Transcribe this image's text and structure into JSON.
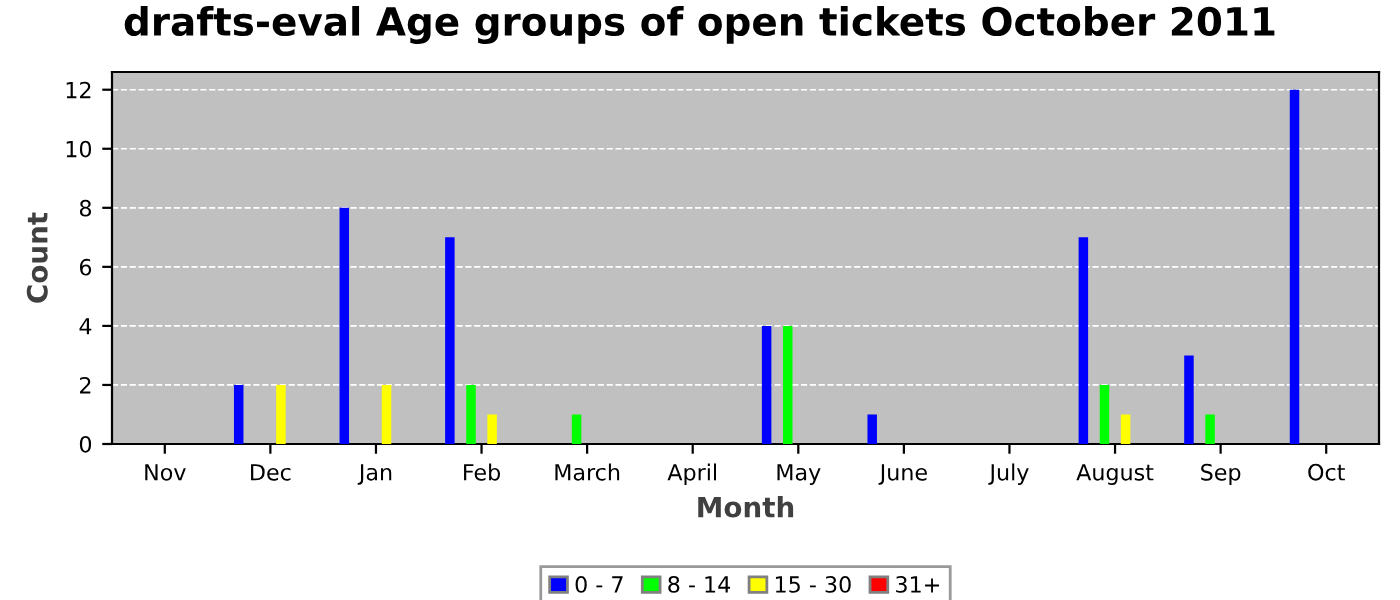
{
  "chart_data": {
    "type": "bar",
    "title": "drafts-eval Age groups of open tickets October 2011",
    "xlabel": "Month",
    "ylabel": "Count",
    "categories": [
      "Nov",
      "Dec",
      "Jan",
      "Feb",
      "March",
      "April",
      "May",
      "June",
      "July",
      "August",
      "Sep",
      "Oct"
    ],
    "series": [
      {
        "name": "0 - 7",
        "color": "#0000ff",
        "values": [
          0,
          2,
          8,
          7,
          0,
          0,
          4,
          1,
          0,
          7,
          3,
          12
        ]
      },
      {
        "name": "8 - 14",
        "color": "#00ff00",
        "values": [
          0,
          0,
          0,
          2,
          1,
          0,
          4,
          0,
          0,
          2,
          1,
          0
        ]
      },
      {
        "name": "15 - 30",
        "color": "#ffff00",
        "values": [
          0,
          2,
          2,
          1,
          0,
          0,
          0,
          0,
          0,
          1,
          0,
          0
        ]
      },
      {
        "name": "31+",
        "color": "#ff0000",
        "values": [
          0,
          0,
          0,
          0,
          0,
          0,
          0,
          0,
          0,
          0,
          0,
          0
        ]
      }
    ],
    "ylim": [
      0,
      12.6
    ],
    "yticks": [
      0,
      2,
      4,
      6,
      8,
      10,
      12
    ],
    "grid": "y",
    "legend": "bottom"
  }
}
